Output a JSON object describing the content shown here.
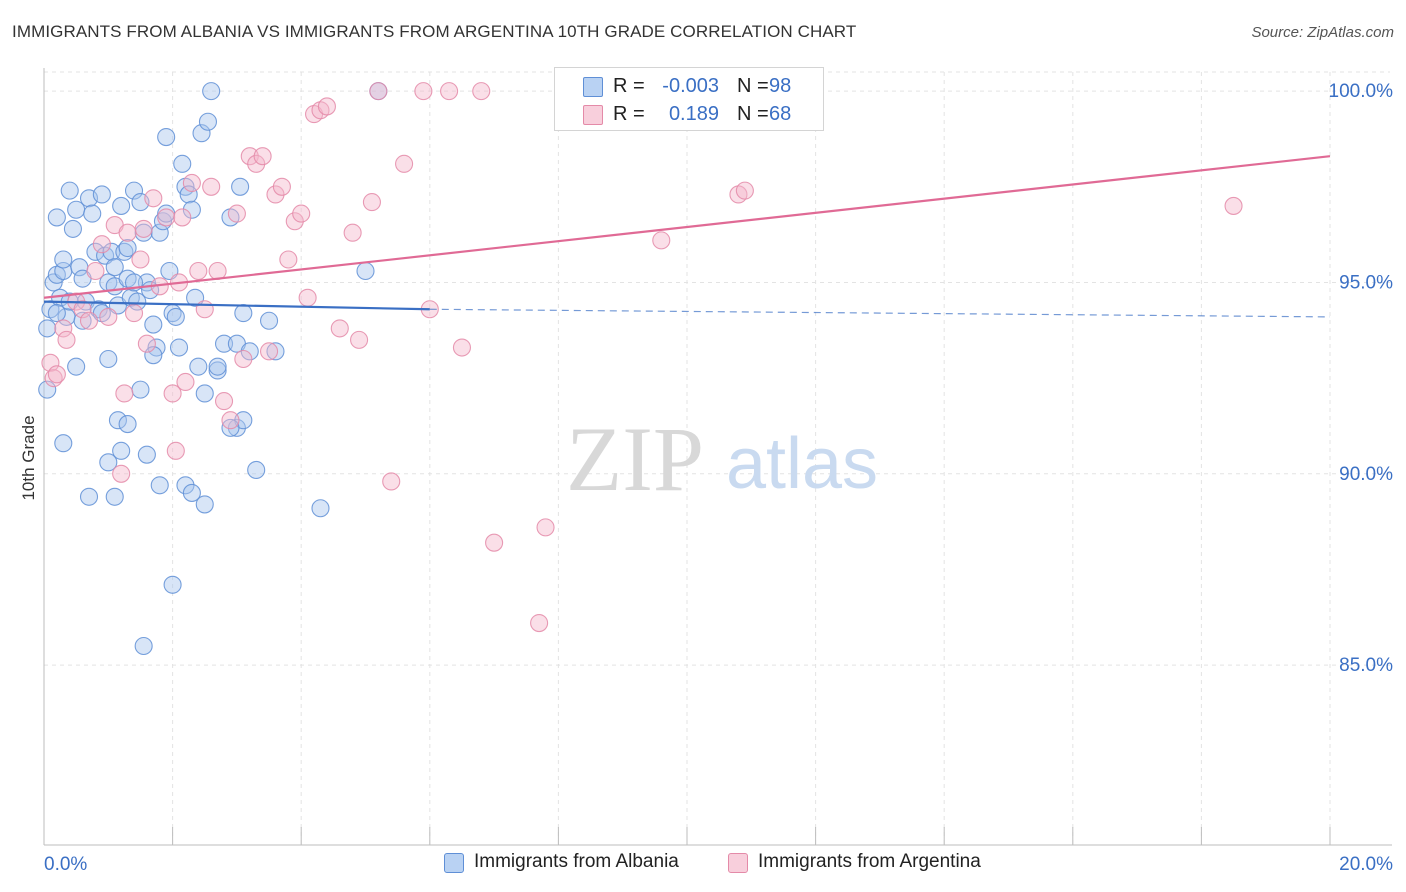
{
  "title": "IMMIGRANTS FROM ALBANIA VS IMMIGRANTS FROM ARGENTINA 10TH GRADE CORRELATION CHART",
  "source": "Source: ZipAtlas.com",
  "watermark": {
    "zip": "ZIP",
    "atlas": "atlas"
  },
  "legend": {
    "rows": [
      {
        "r_label": "R =",
        "r_value": "-0.003",
        "n_label": "N =",
        "n_value": "98"
      },
      {
        "r_label": "R =",
        "r_value": "0.189",
        "n_label": "N =",
        "n_value": "68"
      }
    ]
  },
  "bottom_legend": {
    "albania": "Immigrants from Albania",
    "argentina": "Immigrants from Argentina"
  },
  "colors": {
    "albania_fill": "#a9c6ee",
    "albania_stroke": "#5f8fd6",
    "albania_line": "#3a6fc4",
    "argentina_fill": "#f4b9cc",
    "argentina_stroke": "#e48aa8",
    "argentina_line": "#e06a95",
    "tick_label": "#3a6fc4"
  },
  "chart_data": {
    "type": "scatter",
    "title": "IMMIGRANTS FROM ALBANIA VS IMMIGRANTS FROM ARGENTINA 10TH GRADE CORRELATION CHART",
    "xlabel": "",
    "ylabel": "10th Grade",
    "xlim": [
      0,
      20
    ],
    "ylim": [
      80.3,
      100.5
    ],
    "x_tick_labels": [
      "0.0%",
      "20.0%"
    ],
    "y_ticks": [
      85,
      90,
      95,
      100
    ],
    "y_tick_labels": [
      "85.0%",
      "90.0%",
      "95.0%",
      "100.0%"
    ],
    "grid": true,
    "legend_position": "top-center",
    "series": [
      {
        "name": "Immigrants from Albania",
        "color": "#5f8fd6",
        "trend": {
          "x": [
            0,
            6
          ],
          "y": [
            94.5,
            94.3
          ],
          "dashed_to": [
            20,
            94.1
          ]
        },
        "points": [
          [
            0.05,
            93.8
          ],
          [
            0.1,
            94.3
          ],
          [
            0.15,
            95.0
          ],
          [
            0.2,
            95.2
          ],
          [
            0.25,
            94.6
          ],
          [
            0.3,
            95.3
          ],
          [
            0.35,
            94.1
          ],
          [
            0.05,
            92.2
          ],
          [
            0.4,
            97.4
          ],
          [
            0.45,
            96.4
          ],
          [
            0.5,
            96.9
          ],
          [
            0.55,
            95.4
          ],
          [
            0.6,
            95.1
          ],
          [
            0.65,
            94.5
          ],
          [
            0.7,
            97.2
          ],
          [
            0.75,
            96.8
          ],
          [
            0.8,
            95.8
          ],
          [
            0.85,
            94.3
          ],
          [
            0.9,
            97.3
          ],
          [
            0.95,
            95.7
          ],
          [
            1.0,
            95.0
          ],
          [
            1.05,
            95.8
          ],
          [
            1.1,
            94.9
          ],
          [
            1.15,
            94.4
          ],
          [
            1.2,
            97.0
          ],
          [
            1.25,
            95.8
          ],
          [
            1.3,
            95.1
          ],
          [
            1.35,
            94.6
          ],
          [
            1.4,
            97.4
          ],
          [
            1.45,
            94.5
          ],
          [
            1.5,
            97.1
          ],
          [
            1.55,
            96.3
          ],
          [
            1.6,
            95.0
          ],
          [
            1.65,
            94.8
          ],
          [
            1.7,
            93.9
          ],
          [
            1.75,
            93.3
          ],
          [
            1.8,
            96.3
          ],
          [
            1.85,
            96.6
          ],
          [
            1.9,
            96.8
          ],
          [
            1.95,
            95.3
          ],
          [
            2.0,
            94.2
          ],
          [
            2.05,
            94.1
          ],
          [
            2.1,
            93.3
          ],
          [
            2.15,
            98.1
          ],
          [
            2.2,
            97.5
          ],
          [
            2.25,
            97.3
          ],
          [
            2.3,
            96.9
          ],
          [
            2.35,
            94.6
          ],
          [
            2.4,
            92.8
          ],
          [
            2.45,
            98.9
          ],
          [
            2.5,
            92.1
          ],
          [
            2.55,
            99.2
          ],
          [
            2.6,
            100.0
          ],
          [
            2.7,
            92.7
          ],
          [
            2.8,
            93.4
          ],
          [
            2.9,
            96.7
          ],
          [
            3.0,
            93.4
          ],
          [
            3.05,
            97.5
          ],
          [
            3.1,
            94.2
          ],
          [
            3.2,
            93.2
          ],
          [
            3.3,
            90.1
          ],
          [
            3.5,
            94.0
          ],
          [
            3.6,
            93.2
          ],
          [
            5.0,
            95.3
          ],
          [
            5.2,
            100.0
          ],
          [
            4.3,
            89.1
          ],
          [
            0.3,
            90.8
          ],
          [
            0.5,
            92.8
          ],
          [
            0.7,
            89.4
          ],
          [
            1.0,
            90.3
          ],
          [
            1.1,
            89.4
          ],
          [
            1.15,
            91.4
          ],
          [
            1.2,
            90.6
          ],
          [
            1.3,
            91.3
          ],
          [
            1.5,
            92.2
          ],
          [
            1.55,
            85.5
          ],
          [
            1.6,
            90.5
          ],
          [
            1.8,
            89.7
          ],
          [
            2.0,
            87.1
          ],
          [
            2.2,
            89.7
          ],
          [
            2.3,
            89.5
          ],
          [
            2.5,
            89.2
          ],
          [
            3.0,
            91.2
          ],
          [
            3.1,
            91.4
          ],
          [
            1.9,
            98.8
          ],
          [
            1.1,
            95.4
          ],
          [
            0.6,
            94.0
          ],
          [
            0.9,
            94.2
          ],
          [
            1.3,
            95.9
          ],
          [
            0.2,
            94.2
          ],
          [
            2.7,
            92.8
          ],
          [
            0.4,
            94.5
          ],
          [
            1.7,
            93.1
          ],
          [
            0.3,
            95.6
          ],
          [
            2.9,
            91.2
          ],
          [
            0.2,
            96.7
          ],
          [
            1.0,
            93.0
          ],
          [
            1.4,
            95.0
          ]
        ]
      },
      {
        "name": "Immigrants from Argentina",
        "color": "#e48aa8",
        "trend": {
          "x": [
            0,
            20
          ],
          "y": [
            94.6,
            98.3
          ]
        },
        "points": [
          [
            0.1,
            92.9
          ],
          [
            0.15,
            92.5
          ],
          [
            0.3,
            93.8
          ],
          [
            0.35,
            93.5
          ],
          [
            0.5,
            94.5
          ],
          [
            0.6,
            94.3
          ],
          [
            0.7,
            94.0
          ],
          [
            0.8,
            95.3
          ],
          [
            0.9,
            96.0
          ],
          [
            1.0,
            94.1
          ],
          [
            1.1,
            96.5
          ],
          [
            1.2,
            90.0
          ],
          [
            1.25,
            92.1
          ],
          [
            1.3,
            96.3
          ],
          [
            1.4,
            94.2
          ],
          [
            1.5,
            95.6
          ],
          [
            1.6,
            93.4
          ],
          [
            1.7,
            97.2
          ],
          [
            1.8,
            94.9
          ],
          [
            1.9,
            96.7
          ],
          [
            2.0,
            92.1
          ],
          [
            2.05,
            90.6
          ],
          [
            2.1,
            95.0
          ],
          [
            2.2,
            92.4
          ],
          [
            2.3,
            97.6
          ],
          [
            2.4,
            95.3
          ],
          [
            2.5,
            94.3
          ],
          [
            2.6,
            97.5
          ],
          [
            2.7,
            95.3
          ],
          [
            2.8,
            91.9
          ],
          [
            2.9,
            91.4
          ],
          [
            3.0,
            96.8
          ],
          [
            3.1,
            93.0
          ],
          [
            3.2,
            98.3
          ],
          [
            3.3,
            98.1
          ],
          [
            3.4,
            98.3
          ],
          [
            3.5,
            93.2
          ],
          [
            3.6,
            97.3
          ],
          [
            3.7,
            97.5
          ],
          [
            3.8,
            95.6
          ],
          [
            3.9,
            96.6
          ],
          [
            4.0,
            96.8
          ],
          [
            4.1,
            94.6
          ],
          [
            4.2,
            99.4
          ],
          [
            4.3,
            99.5
          ],
          [
            4.4,
            99.6
          ],
          [
            4.6,
            93.8
          ],
          [
            4.8,
            96.3
          ],
          [
            4.9,
            93.5
          ],
          [
            5.1,
            97.1
          ],
          [
            5.2,
            100.0
          ],
          [
            5.4,
            89.8
          ],
          [
            5.6,
            98.1
          ],
          [
            5.9,
            100.0
          ],
          [
            6.0,
            94.3
          ],
          [
            6.3,
            100.0
          ],
          [
            6.5,
            93.3
          ],
          [
            6.8,
            100.0
          ],
          [
            7.0,
            88.2
          ],
          [
            7.8,
            88.6
          ],
          [
            7.7,
            86.1
          ],
          [
            9.6,
            96.1
          ],
          [
            10.8,
            97.3
          ],
          [
            10.9,
            97.4
          ],
          [
            18.5,
            97.0
          ],
          [
            0.2,
            92.6
          ],
          [
            1.55,
            96.4
          ],
          [
            2.15,
            96.7
          ]
        ]
      }
    ]
  }
}
